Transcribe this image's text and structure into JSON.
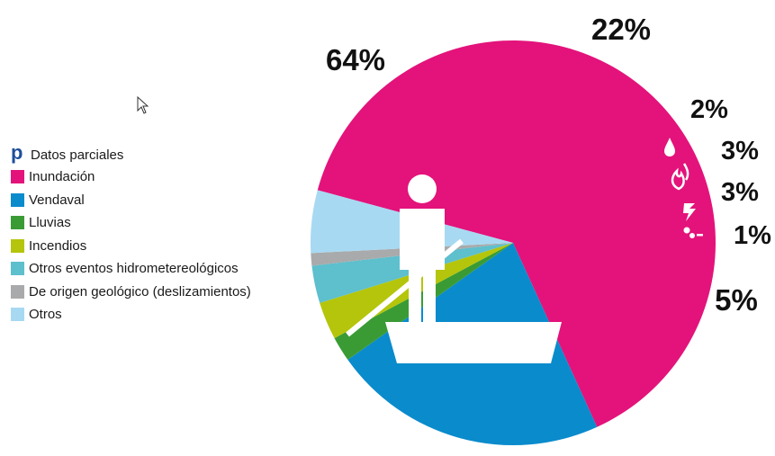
{
  "chart_data": {
    "type": "pie",
    "title": "",
    "note": {
      "marker": "p",
      "text": "Datos parciales"
    },
    "slices": [
      {
        "label": "Inundación",
        "value": 64,
        "value_label": "64%",
        "color": "#e3137b",
        "icon": "person-on-raft-icon"
      },
      {
        "label": "Vendaval",
        "value": 22,
        "value_label": "22%",
        "color": "#0a8bcc",
        "icon": ""
      },
      {
        "label": "Lluvias",
        "value": 2,
        "value_label": "2%",
        "color": "#3a9b35",
        "icon": "raindrop-icon"
      },
      {
        "label": "Incendios",
        "value": 3,
        "value_label": "3%",
        "color": "#b5c50b",
        "icon": "flame-icon"
      },
      {
        "label": "Otros eventos hidrometereológicos",
        "value": 3,
        "value_label": "3%",
        "color": "#5ebfcd",
        "icon": "lightning-icon"
      },
      {
        "label": "De origen geológico (deslizamientos)",
        "value": 1,
        "value_label": "1%",
        "color": "#a9aaab",
        "icon": "rocks-icon"
      },
      {
        "label": "Otros",
        "value": 5,
        "value_label": "5%",
        "color": "#a8d9f2",
        "icon": ""
      }
    ],
    "legend_position": "left"
  },
  "cursor_icon": "mouse-pointer-icon"
}
